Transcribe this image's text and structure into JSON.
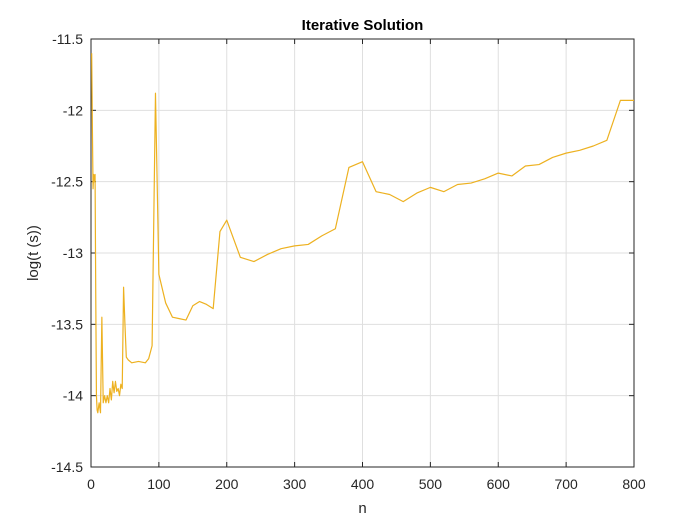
{
  "chart_data": {
    "type": "line",
    "title": "Iterative Solution",
    "xlabel": "n",
    "ylabel": "log(t (s))",
    "xlim": [
      0,
      800
    ],
    "ylim": [
      -14.5,
      -11.5
    ],
    "xticks": [
      0,
      100,
      200,
      300,
      400,
      500,
      600,
      700,
      800
    ],
    "yticks": [
      -11.5,
      -12,
      -12.5,
      -13,
      -13.5,
      -14,
      -14.5
    ],
    "xtick_labels": [
      "0",
      "100",
      "200",
      "300",
      "400",
      "500",
      "600",
      "700",
      "800"
    ],
    "ytick_labels": [
      "-11.5",
      "-12",
      "-12.5",
      "-13",
      "-13.5",
      "-14",
      "-14.5"
    ],
    "grid": true,
    "color": "#EDB120",
    "series": [
      {
        "x": [
          1,
          2,
          3,
          4,
          5,
          6,
          7,
          8,
          9,
          10,
          12,
          14,
          16,
          18,
          20,
          22,
          24,
          26,
          28,
          30,
          32,
          34,
          36,
          38,
          40,
          42,
          44,
          46,
          48,
          50,
          52,
          55,
          60,
          70,
          80,
          85,
          90,
          95,
          100,
          110,
          120,
          130,
          140,
          150,
          160,
          170,
          180,
          190,
          200,
          220,
          240,
          260,
          280,
          300,
          320,
          340,
          360,
          380,
          400,
          420,
          440,
          460,
          480,
          500,
          520,
          540,
          560,
          580,
          600,
          620,
          640,
          660,
          680,
          700,
          720,
          740,
          760,
          780,
          800
        ],
        "values": [
          -11.6,
          -12.1,
          -12.55,
          -12.45,
          -12.5,
          -12.45,
          -13.3,
          -14.0,
          -14.1,
          -14.12,
          -14.05,
          -14.12,
          -13.45,
          -14.05,
          -14.0,
          -14.05,
          -14.0,
          -14.05,
          -13.95,
          -14.03,
          -13.9,
          -13.98,
          -13.9,
          -13.97,
          -13.95,
          -14.0,
          -13.92,
          -13.95,
          -13.24,
          -13.5,
          -13.73,
          -13.75,
          -13.77,
          -13.76,
          -13.77,
          -13.74,
          -13.65,
          -11.88,
          -13.15,
          -13.35,
          -13.45,
          -13.46,
          -13.47,
          -13.37,
          -13.34,
          -13.36,
          -13.39,
          -12.85,
          -12.77,
          -13.03,
          -13.06,
          -13.01,
          -12.97,
          -12.95,
          -12.94,
          -12.88,
          -12.83,
          -12.4,
          -12.36,
          -12.57,
          -12.59,
          -12.64,
          -12.58,
          -12.54,
          -12.57,
          -12.52,
          -12.51,
          -12.48,
          -12.44,
          -12.46,
          -12.39,
          -12.38,
          -12.33,
          -12.3,
          -12.28,
          -12.25,
          -12.21,
          -11.93,
          -11.93
        ]
      }
    ]
  }
}
